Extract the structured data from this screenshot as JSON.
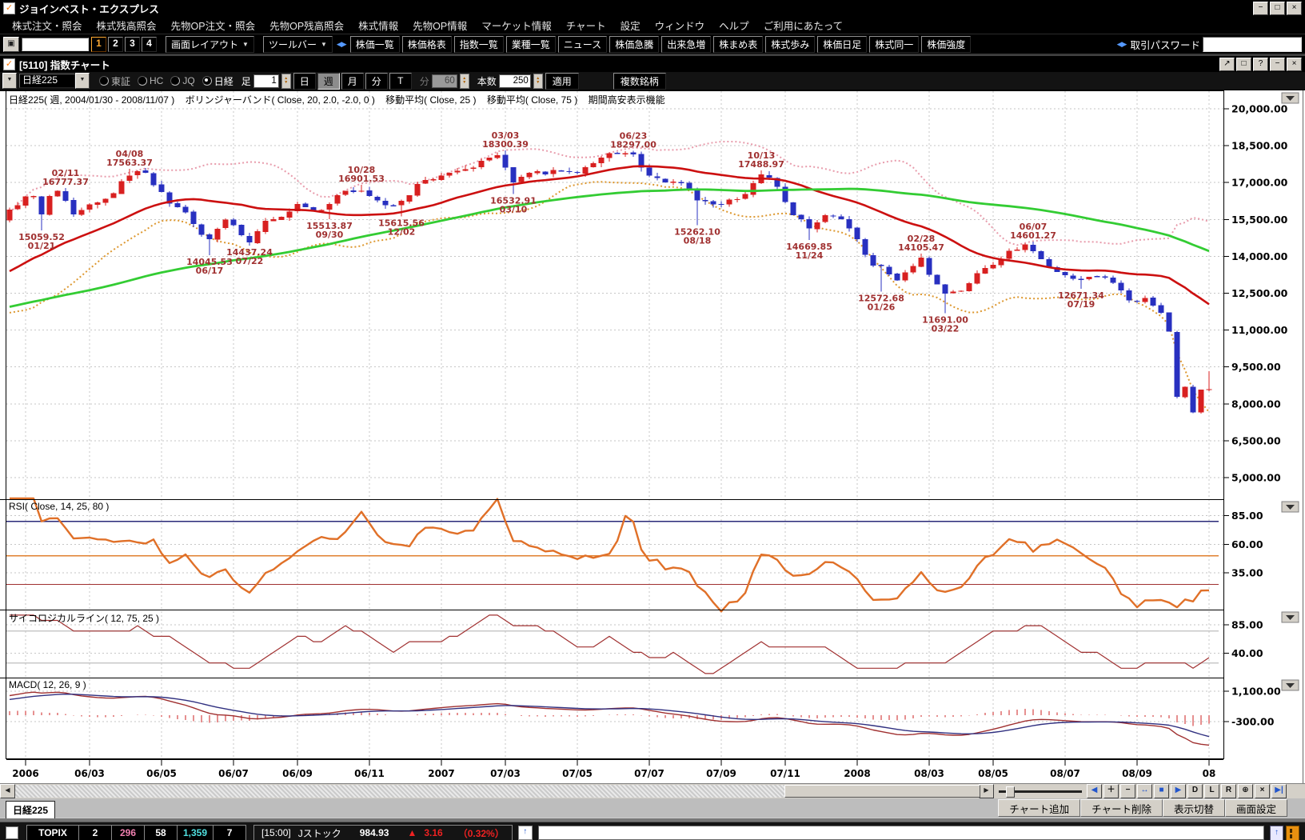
{
  "window": {
    "title": "ジョインベスト・エクスプレス",
    "logo_glyph": "✓",
    "control_glyphs": [
      "−",
      "□",
      "×"
    ]
  },
  "menu_bar": {
    "items": [
      "株式注文・照会",
      "株式残高照会",
      "先物OP注文・照会",
      "先物OP残高照会",
      "株式情報",
      "先物OP情報",
      "マーケット情報",
      "チャート",
      "設定",
      "ウィンドウ",
      "ヘルプ",
      "ご利用にあたって"
    ]
  },
  "toolbar": {
    "screen_input_value": "",
    "screen_buttons": [
      "1",
      "2",
      "3",
      "4"
    ],
    "active_screen_button": "1",
    "layout_button": "画面レイアウト",
    "toolbar_button": "ツールバー",
    "splitter_glyph": "◀▶",
    "quick_buttons": [
      "株価一覧",
      "株価格表",
      "指数一覧",
      "業種一覧",
      "ニュース",
      "株価急騰",
      "出来急増",
      "株まめ表",
      "株式歩み",
      "株価日足",
      "株式同一",
      "株価強度"
    ],
    "password_label": "取引パスワード",
    "password_value": ""
  },
  "chart_window": {
    "title": "[5110] 指数チャート",
    "titlebar_glyphs": [
      "↗",
      "□",
      "?",
      "−",
      "×"
    ],
    "controls": {
      "symbol": "日経225",
      "markets": [
        "東証",
        "HC",
        "JQ",
        "日経"
      ],
      "selected_market": "日経",
      "interval_label": "足",
      "interval_value": "1",
      "period_buttons": [
        "日",
        "週",
        "月",
        "分",
        "T"
      ],
      "active_period": "週",
      "minute_label": "分",
      "minute_value": "60",
      "bars_label": "本数",
      "bars_value": "250",
      "apply_button": "適用",
      "multi_symbol_button": "複数銘柄"
    },
    "header": "日経225( 週, 2004/01/30 - 2008/11/07 )    ボリンジャーバンド( Close, 20, 2.0, -2.0, 0 )    移動平均( Close, 25 )    移動平均( Close, 75 )    期間高安表示機能",
    "tab": "日経225",
    "bottom_buttons": [
      "チャート追加",
      "チャート削除",
      "表示切替",
      "画面設定"
    ],
    "nav_buttons": [
      {
        "label": "◀",
        "accent": true
      },
      {
        "label": "＋",
        "accent": false
      },
      {
        "label": "−",
        "accent": false
      },
      {
        "label": "↔",
        "accent": true
      },
      {
        "label": "■",
        "accent": true
      },
      {
        "label": "▶",
        "accent": true
      },
      {
        "label": "D",
        "accent": false
      },
      {
        "label": "L",
        "accent": false
      },
      {
        "label": "R",
        "accent": false
      },
      {
        "label": "⊕",
        "accent": false
      },
      {
        "label": "×",
        "accent": false
      },
      {
        "label": "▶|",
        "accent": true
      }
    ]
  },
  "chart_data": {
    "type": "candlestick+indicators",
    "title": "日経225",
    "period": "週",
    "date_range": "2004/01/30 - 2008/11/07",
    "bars_total": 250,
    "visible_start_index": 99,
    "start_date": "2004-01-30",
    "x_labels": [
      "2006",
      "06/03",
      "06/05",
      "06/07",
      "06/09",
      "06/11",
      "2007",
      "07/03",
      "07/05",
      "07/07",
      "07/09",
      "07/11",
      "2008",
      "08/03",
      "08/05",
      "08/07",
      "08/09",
      "08"
    ],
    "panels": [
      {
        "name": "price",
        "label": "",
        "y_ticks": [
          20000,
          18500,
          17000,
          15500,
          14000,
          12500,
          11000,
          9500,
          8000,
          6500,
          5000
        ],
        "ylim": [
          4122,
          20748
        ]
      },
      {
        "name": "rsi",
        "label": "RSI( Close, 14, 25, 80 )",
        "y_ticks": [
          85,
          60,
          35
        ],
        "ylim": [
          3,
          99.3
        ],
        "thresholds": [
          {
            "v": 80,
            "color": "#2a2a78"
          },
          {
            "v": 50,
            "color": "#e08030"
          },
          {
            "v": 25,
            "color": "#a03030"
          }
        ]
      },
      {
        "name": "psychological",
        "label": "サイコロジカルライン( 12, 75, 25 )",
        "y_ticks": [
          85,
          40
        ],
        "ylim": [
          2,
          108.6
        ],
        "thresholds": [
          {
            "v": 75,
            "color": "#c8c8c8"
          },
          {
            "v": 25,
            "color": "#c8c8c8"
          }
        ]
      },
      {
        "name": "macd",
        "label": "MACD( 12, 26, 9 )",
        "y_ticks": [
          1100,
          -300
        ],
        "ylim": [
          -2031,
          1726
        ]
      }
    ],
    "indicators": {
      "bollinger": [
        20,
        2.0,
        -2.0,
        0
      ],
      "ma_short": 25,
      "ma_long": 75,
      "rsi": [
        14,
        25,
        80
      ],
      "psych": [
        12,
        75,
        25
      ],
      "macd": [
        12,
        26,
        9
      ]
    },
    "anchors": [
      [
        0,
        10800
      ],
      [
        6,
        11460
      ],
      [
        10,
        11900
      ],
      [
        13,
        11150
      ],
      [
        17,
        11650
      ],
      [
        21,
        11350
      ],
      [
        25,
        10950
      ],
      [
        29,
        11250
      ],
      [
        33,
        11050
      ],
      [
        37,
        10750
      ],
      [
        41,
        10950
      ],
      [
        45,
        11150
      ],
      [
        49,
        11350
      ],
      [
        53,
        11500
      ],
      [
        57,
        11650
      ],
      [
        61,
        11300
      ],
      [
        65,
        11050
      ],
      [
        69,
        11350
      ],
      [
        73,
        11550
      ],
      [
        77,
        12000
      ],
      [
        81,
        12450
      ],
      [
        85,
        12950
      ],
      [
        89,
        13450
      ],
      [
        93,
        14250
      ],
      [
        97,
        15000
      ],
      [
        99,
        15900
      ],
      [
        101,
        16430
      ],
      [
        102,
        16450
      ],
      [
        103,
        15700
      ],
      [
        104,
        16460
      ],
      [
        105,
        16660
      ],
      [
        106,
        16260
      ],
      [
        107,
        15710
      ],
      [
        109,
        16110
      ],
      [
        111,
        16340
      ],
      [
        112,
        16560
      ],
      [
        113,
        17060
      ],
      [
        114,
        17290
      ],
      [
        116,
        17400
      ],
      [
        117,
        16900
      ],
      [
        119,
        16150
      ],
      [
        121,
        15790
      ],
      [
        123,
        14880
      ],
      [
        124,
        14700
      ],
      [
        125,
        15120
      ],
      [
        126,
        15500
      ],
      [
        128,
        14850
      ],
      [
        129,
        14560
      ],
      [
        131,
        15450
      ],
      [
        133,
        15600
      ],
      [
        135,
        16130
      ],
      [
        137,
        15860
      ],
      [
        139,
        16130
      ],
      [
        141,
        16670
      ],
      [
        143,
        16670
      ],
      [
        145,
        16270
      ],
      [
        147,
        16070
      ],
      [
        148,
        16250
      ],
      [
        150,
        16940
      ],
      [
        152,
        17130
      ],
      [
        154,
        17400
      ],
      [
        156,
        17550
      ],
      [
        158,
        17880
      ],
      [
        160,
        18110
      ],
      [
        161,
        17600
      ],
      [
        162,
        17010
      ],
      [
        164,
        17400
      ],
      [
        166,
        17330
      ],
      [
        168,
        17460
      ],
      [
        170,
        17400
      ],
      [
        172,
        17780
      ],
      [
        174,
        18200
      ],
      [
        176,
        18190
      ],
      [
        177,
        18140
      ],
      [
        179,
        17280
      ],
      [
        181,
        17010
      ],
      [
        183,
        16980
      ],
      [
        185,
        16270
      ],
      [
        187,
        16120
      ],
      [
        189,
        16310
      ],
      [
        191,
        16530
      ],
      [
        193,
        17330
      ],
      [
        195,
        16820
      ],
      [
        197,
        15680
      ],
      [
        199,
        15130
      ],
      [
        201,
        15680
      ],
      [
        203,
        15510
      ],
      [
        205,
        14690
      ],
      [
        207,
        13630
      ],
      [
        208,
        13600
      ],
      [
        210,
        13020
      ],
      [
        212,
        13600
      ],
      [
        213,
        13950
      ],
      [
        214,
        13250
      ],
      [
        216,
        12480
      ],
      [
        218,
        12600
      ],
      [
        220,
        13320
      ],
      [
        222,
        13650
      ],
      [
        224,
        14220
      ],
      [
        226,
        14490
      ],
      [
        227,
        14210
      ],
      [
        229,
        13540
      ],
      [
        231,
        13240
      ],
      [
        233,
        13040
      ],
      [
        235,
        13170
      ],
      [
        237,
        12920
      ],
      [
        239,
        12210
      ],
      [
        241,
        12310
      ],
      [
        243,
        11700
      ],
      [
        244,
        10940
      ],
      [
        245,
        8280
      ],
      [
        246,
        8690
      ],
      [
        247,
        7650
      ],
      [
        248,
        8580
      ],
      [
        249,
        8600
      ]
    ],
    "annotations": [
      {
        "i": 103,
        "value": 15059.52,
        "date": "01/21",
        "type": "low"
      },
      {
        "i": 106,
        "value": 16777.37,
        "date": "02/11",
        "type": "high"
      },
      {
        "i": 114,
        "value": 17563.37,
        "date": "04/08",
        "type": "high"
      },
      {
        "i": 124,
        "value": 14045.53,
        "date": "06/17",
        "type": "low"
      },
      {
        "i": 129,
        "value": 14437.24,
        "date": "07/22",
        "type": "low"
      },
      {
        "i": 139,
        "value": 15513.87,
        "date": "09/30",
        "type": "low"
      },
      {
        "i": 143,
        "value": 16901.53,
        "date": "10/28",
        "type": "high"
      },
      {
        "i": 148,
        "value": 15615.56,
        "date": "12/02",
        "type": "low"
      },
      {
        "i": 161,
        "value": 18300.39,
        "date": "03/03",
        "type": "high"
      },
      {
        "i": 162,
        "value": 16532.91,
        "date": "03/10",
        "type": "low"
      },
      {
        "i": 177,
        "value": 18297.0,
        "date": "06/23",
        "type": "high"
      },
      {
        "i": 185,
        "value": 15262.1,
        "date": "08/18",
        "type": "low"
      },
      {
        "i": 193,
        "value": 17488.97,
        "date": "10/13",
        "type": "high"
      },
      {
        "i": 199,
        "value": 14669.85,
        "date": "11/24",
        "type": "low"
      },
      {
        "i": 208,
        "value": 12572.68,
        "date": "01/26",
        "type": "low"
      },
      {
        "i": 213,
        "value": 14105.47,
        "date": "02/28",
        "type": "high"
      },
      {
        "i": 216,
        "value": 11691.0,
        "date": "03/22",
        "type": "low"
      },
      {
        "i": 227,
        "value": 14601.27,
        "date": "06/07",
        "type": "high"
      },
      {
        "i": 233,
        "value": 12671.34,
        "date": "07/19",
        "type": "low"
      }
    ],
    "colors": {
      "up": "#d82020",
      "down": "#2830c0",
      "ma25": "#cc1010",
      "ma75": "#33cc33",
      "boll_up": "#e89cac",
      "boll_low": "#dd9830",
      "rsi": "#e07028",
      "psych": "#a03030",
      "macd": "#a03030",
      "signal": "#303080",
      "hist": "#cc2020",
      "annotation": "#a03030",
      "grid": "#c6c6c6"
    }
  },
  "status_bar": {
    "index_name": "TOPIX",
    "cells": [
      {
        "text": "2",
        "color": "#ffffff"
      },
      {
        "text": "296",
        "color": "#f080b0"
      },
      {
        "text": "58",
        "color": "#ffffff"
      },
      {
        "text": "1,359",
        "color": "#50e0e0"
      },
      {
        "text": "7",
        "color": "#ffffff"
      }
    ],
    "time": "[15:00]",
    "market": "Jストック",
    "price": "984.93",
    "up_triangle": "▲",
    "change": "3.16",
    "change_pct": "（0.32%）",
    "up_glyph": "↑"
  }
}
